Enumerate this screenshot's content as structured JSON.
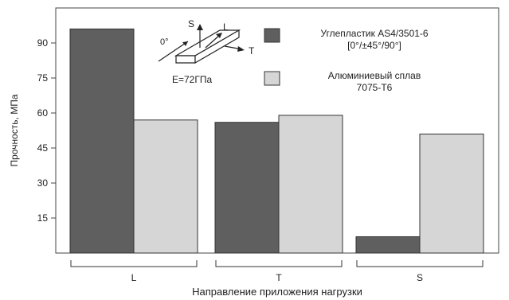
{
  "chart_data": {
    "type": "bar",
    "categories": [
      "L",
      "T",
      "S"
    ],
    "series": [
      {
        "name": "Углепластик AS4/3501-6",
        "name_line2": "[0°/±45°/90°]",
        "color": "#5f5f5f",
        "values": [
          96,
          56,
          7
        ]
      },
      {
        "name": "Алюминиевый сплав",
        "name_line2": "7075-T6",
        "color": "#d6d6d6",
        "values": [
          57,
          59,
          51
        ]
      }
    ],
    "xlabel": "Направление приложения нагрузки",
    "ylabel": "Прочность, МПа",
    "ylim": [
      0,
      105
    ],
    "yticks": [
      15,
      30,
      45,
      60,
      75,
      90
    ],
    "grid": false,
    "legend_position": "top-right",
    "inset": {
      "angle_label": "0°",
      "axis_s": "S",
      "axis_l": "L",
      "axis_t": "T",
      "modulus_label": "E=72ГПа"
    }
  }
}
